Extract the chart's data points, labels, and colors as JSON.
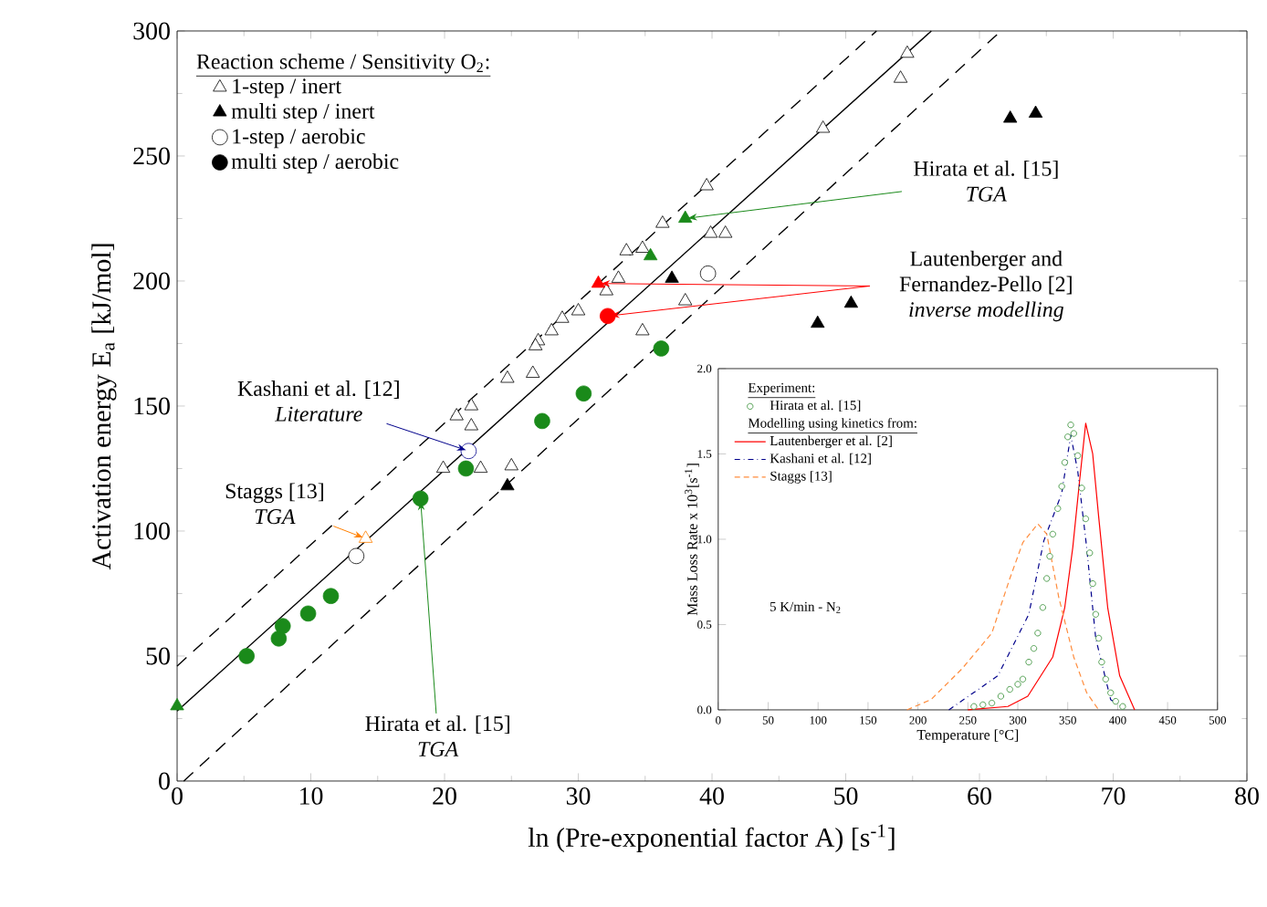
{
  "chart_data": [
    {
      "type": "scatter",
      "xlabel": "ln (Pre-exponential factor A) [s$^{-1}$]",
      "ylabel": "Activation energy E$_{a}$ [kJ/mol]",
      "xlim": [
        0,
        80
      ],
      "ylim": [
        0,
        300
      ],
      "xticks": [
        0,
        10,
        20,
        30,
        40,
        50,
        60,
        70,
        80
      ],
      "yticks": [
        0,
        50,
        100,
        150,
        200,
        250,
        300
      ],
      "legend": "top left",
      "legend_title": "Reaction scheme / Sensitivity O$_{2}$:",
      "annotations": [
        {
          "text": "Kashani et al. [12] *Literature*",
          "x": 21.8,
          "y": 132
        },
        {
          "text": "Staggs [13] *TGA*",
          "x": 14.1,
          "y": 97
        },
        {
          "text": "Hirata et al. [15] *TGA*",
          "x": 18.2,
          "y": 113
        },
        {
          "text": "Hirata et al. [15] *TGA*",
          "x": 38,
          "y": 225
        },
        "Lautenberger and Fernandez-Pello [2] *inverse modelling*"
      ],
      "series": [
        {
          "name": "1-step / inert",
          "color": "#000000",
          "marker": "triangle",
          "x": [
            54.6,
            54.1,
            48.3,
            39.6,
            36.3,
            39.9,
            41,
            33.6,
            34.8,
            33,
            32.1,
            38,
            34.8,
            30,
            28.8,
            28,
            27,
            26.8,
            24.7,
            26.6,
            20.9,
            22,
            22,
            19.9,
            22.7,
            25
          ],
          "values": [
            291,
            281,
            261,
            238,
            223,
            219,
            219,
            212,
            213,
            201,
            196,
            192,
            180,
            188,
            185,
            180,
            176,
            174,
            161,
            163,
            146,
            150,
            142,
            125,
            125,
            126
          ]
        },
        {
          "name": "multi step / inert",
          "color": "#000000",
          "marker": "triangle",
          "x": [
            62.3,
            64.2,
            47.9,
            50.4,
            37,
            24.7
          ],
          "values": [
            265,
            267,
            183,
            191,
            201,
            118
          ]
        },
        {
          "name": "1-step / aerobic",
          "color": "#000000",
          "marker": "circle",
          "x": [
            39.7,
            13.4
          ],
          "values": [
            203,
            90
          ]
        },
        {
          "name": "multi step / aerobic",
          "color": "#000000",
          "marker": "circle"
        },
        {
          "color": "#1a8a1a",
          "marker": "circle",
          "x": [
            5.2,
            7.6,
            7.9,
            9.8,
            11.5,
            18.2,
            21.6,
            27.3,
            30.4,
            36.2
          ],
          "values": [
            50,
            57,
            62,
            67,
            74,
            113,
            125,
            144,
            155,
            173
          ]
        },
        {
          "color": "#1a8a1a",
          "marker": "triangle",
          "x": [
            0,
            35.4,
            38
          ],
          "values": [
            30,
            210,
            225
          ]
        },
        {
          "color": "#ff0000",
          "marker": "triangle",
          "x": [
            31.5
          ],
          "values": [
            199
          ]
        },
        {
          "color": "#ff0000",
          "marker": "circle",
          "x": [
            32.2
          ],
          "values": [
            186
          ]
        },
        {
          "color": "#00008b",
          "marker": "circle",
          "x": [
            21.8
          ],
          "values": [
            132
          ]
        },
        {
          "color": "#ff8000",
          "marker": "triangle",
          "x": [
            14.1
          ],
          "values": [
            97
          ]
        },
        {
          "type": "line",
          "color": "#000000",
          "line_style": "solid",
          "x": [
            0,
            56.4
          ],
          "values": [
            28,
            300
          ]
        },
        {
          "type": "line",
          "color": "#000000",
          "line_style": "dashed",
          "x": [
            0,
            52.3
          ],
          "values": [
            46,
            300
          ]
        },
        {
          "type": "line",
          "color": "#000000",
          "line_style": "dashed",
          "x": [
            0.5,
            61.6
          ],
          "values": [
            0,
            300
          ]
        }
      ]
    },
    {
      "type": "line",
      "xlabel": "Temperature [°C]",
      "ylabel": "Mass Loss Rate x 10$^{3}$[s$^{-1}$]",
      "xlim": [
        0,
        500
      ],
      "ylim": [
        0,
        2.0
      ],
      "xticks": [
        0,
        50,
        100,
        150,
        200,
        250,
        300,
        350,
        400,
        450,
        500
      ],
      "yticks": [
        {
          "value": 0,
          "label": "0.0"
        },
        {
          "value": 0.5,
          "label": "0.5"
        },
        {
          "value": 1.0,
          "label": "1.0"
        },
        {
          "value": 1.5,
          "label": "1.5"
        },
        {
          "value": 2.0,
          "label": "2.0"
        }
      ],
      "legend": "top left",
      "legend_title": "Experiment:",
      "annotations": [
        "Modelling using kinetics from:",
        "5 K/min - N$_{2}$"
      ],
      "series": [
        {
          "name": "Hirata et al. [15]",
          "type": "scatter",
          "marker": "circle",
          "color": "#2e8b2e",
          "x": [
            256,
            265,
            274,
            283,
            292,
            300,
            305,
            311,
            316,
            320,
            325,
            329,
            332,
            335,
            340,
            344,
            347,
            350,
            353,
            356,
            360,
            364,
            368,
            372,
            375,
            378,
            381,
            384,
            388,
            393,
            398,
            405
          ],
          "values": [
            0.02,
            0.03,
            0.04,
            0.08,
            0.12,
            0.15,
            0.18,
            0.28,
            0.36,
            0.45,
            0.6,
            0.77,
            0.9,
            1.03,
            1.18,
            1.31,
            1.45,
            1.6,
            1.67,
            1.62,
            1.49,
            1.3,
            1.12,
            0.92,
            0.74,
            0.56,
            0.42,
            0.28,
            0.18,
            0.1,
            0.05,
            0.02
          ]
        },
        {
          "name": "Lautenberger et al. [2]",
          "color": "#ff0000",
          "line_style": "solid",
          "x": [
            250,
            290,
            310,
            335,
            347,
            355,
            362,
            368,
            375,
            381,
            390,
            402,
            417
          ],
          "values": [
            0,
            0.02,
            0.08,
            0.31,
            0.6,
            0.95,
            1.35,
            1.68,
            1.5,
            1.13,
            0.6,
            0.2,
            0
          ]
        },
        {
          "name": "Kashani et al. [12]",
          "color": "#00008b",
          "line_style": "dashdot",
          "x": [
            231,
            280,
            311,
            326,
            344,
            353,
            360,
            369,
            378,
            393,
            409
          ],
          "values": [
            0,
            0.2,
            0.56,
            0.99,
            1.27,
            1.61,
            1.4,
            0.95,
            0.42,
            0.06,
            0
          ]
        },
        {
          "name": "Staggs [13]",
          "color": "#ff8c3c",
          "line_style": "dashed",
          "x": [
            189,
            213,
            244,
            274,
            292,
            305,
            320,
            329,
            341,
            356,
            369,
            381
          ],
          "values": [
            0,
            0.06,
            0.24,
            0.45,
            0.77,
            0.98,
            1.09,
            1.03,
            0.66,
            0.31,
            0.1,
            0
          ]
        }
      ]
    }
  ]
}
